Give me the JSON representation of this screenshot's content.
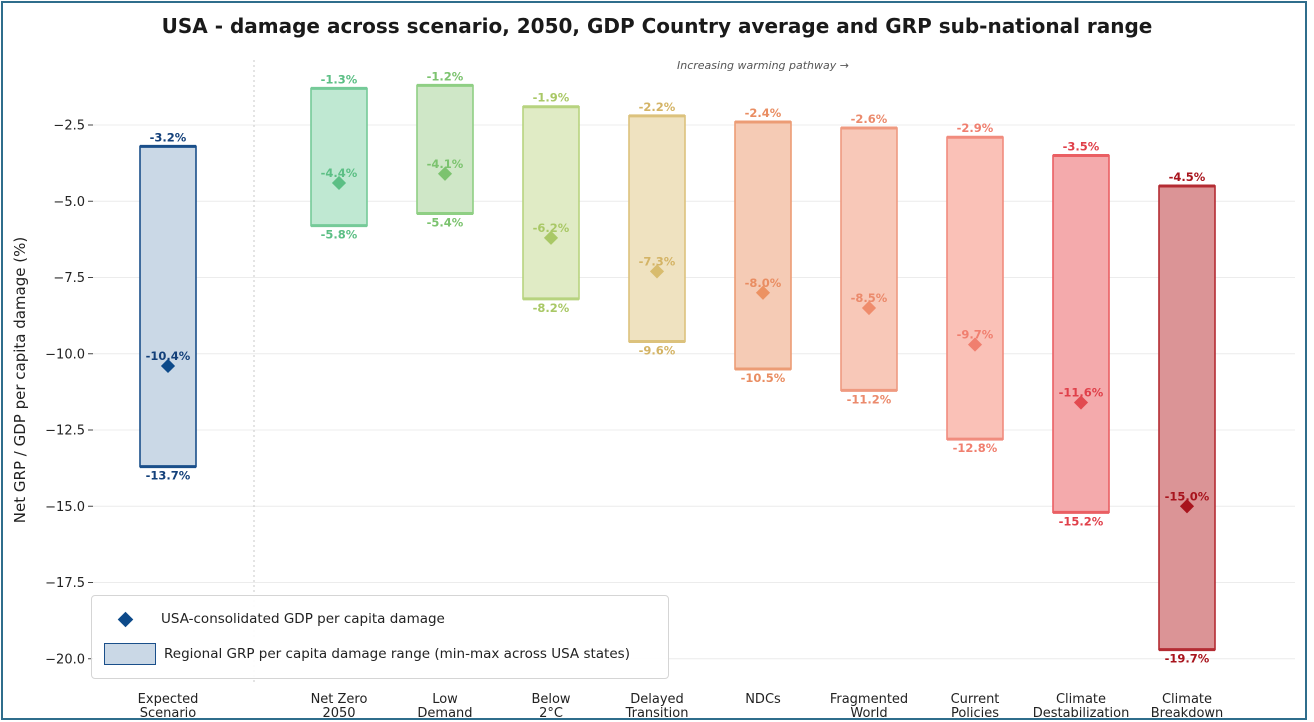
{
  "chart_data": {
    "type": "range_bar",
    "title": "USA - damage across scenario, 2050, GDP Country average and GRP sub-national range",
    "ylabel": "Net GRP / GDP per capita damage (%)",
    "annotation": "Increasing warming pathway →",
    "ylim": [
      -20.5,
      -0.4
    ],
    "yticks": [
      -2.5,
      -5.0,
      -7.5,
      -10.0,
      -12.5,
      -15.0,
      -17.5,
      -20.0
    ],
    "ytick_labels": [
      "−2.5",
      "−5.0",
      "−7.5",
      "−10.0",
      "−12.5",
      "−15.0",
      "−17.5",
      "−20.0"
    ],
    "grid": true,
    "legend_position": "bottom-left",
    "legend": [
      {
        "label": "USA-consolidated GDP per capita damage",
        "marker": "diamond",
        "color": "#0d4a8a"
      },
      {
        "label": "Regional GRP per capita damage range (min-max across USA states)",
        "marker": "box",
        "color": "#cad8e6"
      }
    ],
    "categories": [
      {
        "label_lines": [
          "Expected",
          "Scenario"
        ],
        "max": -3.2,
        "min": -13.7,
        "avg": -10.4,
        "max_label": "-3.2%",
        "min_label": "-13.7%",
        "avg_label": "-10.4%",
        "fill": "#cad8e6",
        "stroke": "#1a4f8a",
        "text": "#13407a",
        "marker": "#0d4a8a"
      },
      {
        "label_lines": [
          "Net Zero",
          "2050"
        ],
        "max": -1.3,
        "min": -5.8,
        "avg": -4.4,
        "max_label": "-1.3%",
        "min_label": "-5.8%",
        "avg_label": "-4.4%",
        "fill": "#bfe8d2",
        "stroke": "#75ca98",
        "text": "#5cbf85",
        "marker": "#5cbf85"
      },
      {
        "label_lines": [
          "Low",
          "Demand"
        ],
        "max": -1.2,
        "min": -5.4,
        "avg": -4.1,
        "max_label": "-1.2%",
        "min_label": "-5.4%",
        "avg_label": "-4.1%",
        "fill": "#cfe7c7",
        "stroke": "#8fcf84",
        "text": "#7cc36f",
        "marker": "#7cc36f"
      },
      {
        "label_lines": [
          "Below",
          "2°C"
        ],
        "max": -1.9,
        "min": -8.2,
        "avg": -6.2,
        "max_label": "-1.9%",
        "min_label": "-8.2%",
        "avg_label": "-6.2%",
        "fill": "#e0ebc5",
        "stroke": "#b7d37f",
        "text": "#a9c866",
        "marker": "#a9c866"
      },
      {
        "label_lines": [
          "Delayed",
          "Transition"
        ],
        "max": -2.2,
        "min": -9.6,
        "avg": -7.3,
        "max_label": "-2.2%",
        "min_label": "-9.6%",
        "avg_label": "-7.3%",
        "fill": "#efe2c0",
        "stroke": "#dcc27d",
        "text": "#d4b466",
        "marker": "#d8bc6e"
      },
      {
        "label_lines": [
          "NDCs"
        ],
        "max": -2.4,
        "min": -10.5,
        "avg": -8.0,
        "max_label": "-2.4%",
        "min_label": "-10.5%",
        "avg_label": "-8.0%",
        "fill": "#f5cbb5",
        "stroke": "#ec9c75",
        "text": "#e98d62",
        "marker": "#ec9262"
      },
      {
        "label_lines": [
          "Fragmented",
          "World"
        ],
        "max": -2.6,
        "min": -11.2,
        "avg": -8.5,
        "max_label": "-2.6%",
        "min_label": "-11.2%",
        "avg_label": "-8.5%",
        "fill": "#f8c8b8",
        "stroke": "#ef9a80",
        "text": "#eb8a6c",
        "marker": "#ef8c6c"
      },
      {
        "label_lines": [
          "Current",
          "Policies"
        ],
        "max": -2.9,
        "min": -12.8,
        "avg": -9.7,
        "max_label": "-2.9%",
        "min_label": "-12.8%",
        "avg_label": "-9.7%",
        "fill": "#fac1b7",
        "stroke": "#f18c7e",
        "text": "#f07f6f",
        "marker": "#f07f6f"
      },
      {
        "label_lines": [
          "Climate",
          "Destabilization"
        ],
        "max": -3.5,
        "min": -15.2,
        "avg": -11.6,
        "max_label": "-3.5%",
        "min_label": "-15.2%",
        "avg_label": "-11.6%",
        "fill": "#f4aaac",
        "stroke": "#ea5f63",
        "text": "#e0404a",
        "marker": "#e24a50"
      },
      {
        "label_lines": [
          "Climate",
          "Breakdown"
        ],
        "max": -4.5,
        "min": -19.7,
        "avg": -15.0,
        "max_label": "-4.5%",
        "min_label": "-19.7%",
        "avg_label": "-15.0%",
        "fill": "#db9496",
        "stroke": "#b42c33",
        "text": "#a8141d",
        "marker": "#a8141d"
      }
    ]
  }
}
